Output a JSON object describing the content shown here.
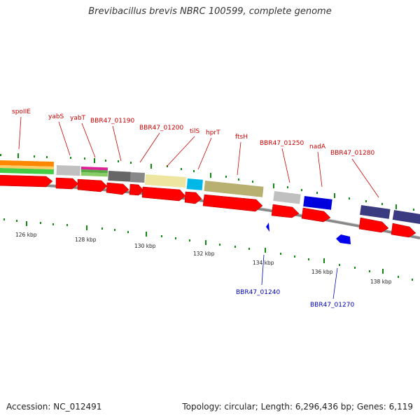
{
  "title": "Brevibacillus brevis NBRC 100599, complete genome",
  "footer": {
    "accession": "Accession: NC_012491",
    "topology": "Topology: circular; Length: 6,296,436 bp; Genes: 6,119"
  },
  "colors": {
    "gene_red": "#ff0000",
    "gene_blue": "#0000ee",
    "label_red": "#cc0000",
    "label_blue": "#0000bb",
    "tick_green": "#118811"
  },
  "ticks": [
    "126 kbp",
    "128 kbp",
    "130 kbp",
    "132 kbp",
    "134 kbp",
    "136 kbp",
    "138 kbp"
  ],
  "genes_forward": [
    {
      "name": "spoIIE"
    },
    {
      "name": "yabS"
    },
    {
      "name": "yabT"
    },
    {
      "name": "BBR47_01190"
    },
    {
      "name": "BBR47_01200"
    },
    {
      "name": "tilS"
    },
    {
      "name": "hprT"
    },
    {
      "name": "ftsH"
    },
    {
      "name": "BBR47_01250"
    },
    {
      "name": "nadA"
    },
    {
      "name": "BBR47_01280"
    }
  ],
  "genes_reverse": [
    {
      "name": "BBR47_01240"
    },
    {
      "name": "BBR47_01270"
    }
  ]
}
